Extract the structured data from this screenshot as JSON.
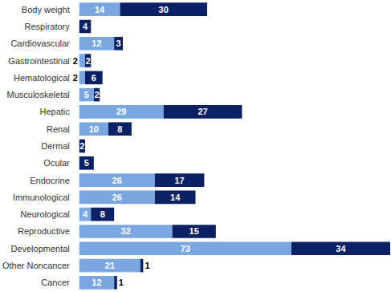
{
  "chart_data": {
    "type": "bar",
    "orientation": "horizontal",
    "stacked": true,
    "data_labels": true,
    "tick_labels": "y",
    "grid": false,
    "categories": [
      "Body weight",
      "Respiratory",
      "Cardiovascular",
      "Gastrointestinal",
      "Hematological",
      "Musculoskeletal",
      "Hepatic",
      "Renal",
      "Dermal",
      "Ocular",
      "Endocrine",
      "Immunological",
      "Neurological",
      "Reproductive",
      "Developmental",
      "Other Noncancer",
      "Cancer"
    ],
    "xlim": [
      0,
      107
    ],
    "series": [
      {
        "color": "#7BA7E1",
        "values": [
          14,
          null,
          12,
          2,
          2,
          5,
          29,
          10,
          null,
          null,
          26,
          26,
          4,
          32,
          73,
          21,
          12
        ]
      },
      {
        "color": "#0C2163",
        "values": [
          30,
          4,
          3,
          2,
          6,
          2,
          27,
          8,
          2,
          5,
          17,
          14,
          8,
          15,
          34,
          1,
          1
        ]
      }
    ]
  }
}
